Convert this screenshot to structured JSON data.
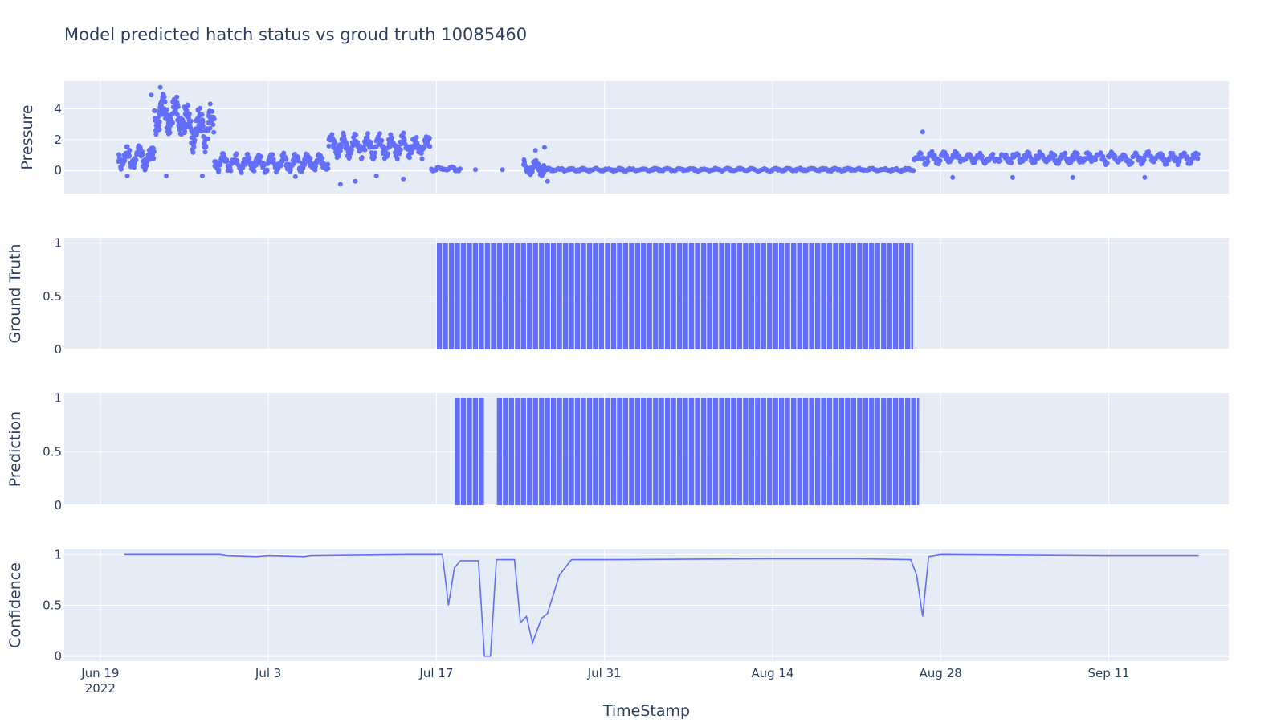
{
  "chart_data": {
    "type": "subplots",
    "title": "Model predicted hatch status vs groud truth 10085460",
    "xlabel": "TimeStamp",
    "x_axis": {
      "type": "date",
      "range": [
        "2022-06-16",
        "2022-09-21"
      ],
      "ticks": [
        {
          "date": "2022-06-19",
          "label": "Jun 19",
          "sub": "2022"
        },
        {
          "date": "2022-07-03",
          "label": "Jul 3",
          "sub": ""
        },
        {
          "date": "2022-07-17",
          "label": "Jul 17",
          "sub": ""
        },
        {
          "date": "2022-07-31",
          "label": "Jul 31",
          "sub": ""
        },
        {
          "date": "2022-08-14",
          "label": "Aug 14",
          "sub": ""
        },
        {
          "date": "2022-08-28",
          "label": "Aug 28",
          "sub": ""
        },
        {
          "date": "2022-09-11",
          "label": "Sep 11",
          "sub": ""
        }
      ]
    },
    "colors": {
      "series": "#636efa",
      "plot_bg": "#e5ecf6",
      "grid": "#ffffff",
      "text": "#2a3f5f"
    },
    "grid": true,
    "panels": [
      {
        "type": "scatter",
        "ylabel": "Pressure",
        "ylim": [
          -1.5,
          5.8
        ],
        "yticks": [
          {
            "v": 0,
            "label": "0"
          },
          {
            "v": 2,
            "label": "2"
          },
          {
            "v": 4,
            "label": "4"
          }
        ],
        "segments": [
          {
            "start": "2022-06-20T12:00",
            "end": "2022-06-23T12:00",
            "level": 0.8,
            "spread": 0.8,
            "n": 90
          },
          {
            "start": "2022-06-23T12:00",
            "end": "2022-06-26T00:00",
            "level": 3.6,
            "spread": 1.3,
            "n": 110
          },
          {
            "start": "2022-06-26T00:00",
            "end": "2022-06-28T12:00",
            "level": 2.8,
            "spread": 1.5,
            "n": 90
          },
          {
            "start": "2022-06-28T12:00",
            "end": "2022-07-08T00:00",
            "level": 0.5,
            "spread": 0.6,
            "n": 220
          },
          {
            "start": "2022-07-08T00:00",
            "end": "2022-07-16T12:00",
            "level": 1.6,
            "spread": 0.8,
            "n": 200
          },
          {
            "start": "2022-07-16T12:00",
            "end": "2022-07-19T00:00",
            "level": 0.1,
            "spread": 0.15,
            "n": 30
          },
          {
            "start": "2022-07-24T06:00",
            "end": "2022-07-26T00:00",
            "level": 0.2,
            "spread": 0.5,
            "n": 50
          },
          {
            "start": "2022-07-26T00:00",
            "end": "2022-08-25T18:00",
            "level": 0.05,
            "spread": 0.1,
            "n": 360
          },
          {
            "start": "2022-08-25T18:00",
            "end": "2022-09-18T12:00",
            "level": 0.8,
            "spread": 0.4,
            "n": 360
          }
        ],
        "outliers": [
          {
            "x": "2022-06-21T06:00",
            "y": -0.35
          },
          {
            "x": "2022-06-24T12:00",
            "y": -0.35
          },
          {
            "x": "2022-06-27T12:00",
            "y": -0.35
          },
          {
            "x": "2022-07-05T06:00",
            "y": -0.4
          },
          {
            "x": "2022-07-09T00:00",
            "y": -0.9
          },
          {
            "x": "2022-07-10T06:00",
            "y": -0.7
          },
          {
            "x": "2022-07-12T00:00",
            "y": -0.35
          },
          {
            "x": "2022-07-14T06:00",
            "y": -0.55
          },
          {
            "x": "2022-07-20T06:00",
            "y": 0.05
          },
          {
            "x": "2022-07-22T12:00",
            "y": 0.05
          },
          {
            "x": "2022-07-25T06:00",
            "y": 1.3
          },
          {
            "x": "2022-07-26T00:00",
            "y": 1.5
          },
          {
            "x": "2022-07-26T06:00",
            "y": -0.7
          },
          {
            "x": "2022-08-26T12:00",
            "y": 2.5
          },
          {
            "x": "2022-08-29T00:00",
            "y": -0.45
          },
          {
            "x": "2022-09-03T00:00",
            "y": -0.45
          },
          {
            "x": "2022-09-08T00:00",
            "y": -0.45
          },
          {
            "x": "2022-09-14T00:00",
            "y": -0.45
          },
          {
            "x": "2022-06-24T00:00",
            "y": 5.4
          },
          {
            "x": "2022-06-23T06:00",
            "y": 4.9
          }
        ]
      },
      {
        "type": "bar",
        "ylabel": "Ground Truth",
        "ylim": [
          0,
          1.05
        ],
        "yticks": [
          {
            "v": 0,
            "label": "0"
          },
          {
            "v": 0.5,
            "label": "0.5"
          },
          {
            "v": 1,
            "label": "1"
          }
        ],
        "bars": [
          {
            "start": "2022-07-17T00:00",
            "end": "2022-08-25T18:00",
            "value": 1
          }
        ]
      },
      {
        "type": "bar",
        "ylabel": "Prediction",
        "ylim": [
          0,
          1.05
        ],
        "yticks": [
          {
            "v": 0,
            "label": "0"
          },
          {
            "v": 0.5,
            "label": "0.5"
          },
          {
            "v": 1,
            "label": "1"
          }
        ],
        "bars": [
          {
            "start": "2022-07-18T12:00",
            "end": "2022-07-21T00:00",
            "value": 1
          },
          {
            "start": "2022-07-22T00:00",
            "end": "2022-08-26T06:00",
            "value": 1
          }
        ]
      },
      {
        "type": "line",
        "ylabel": "Confidence",
        "ylim": [
          -0.05,
          1.05
        ],
        "yticks": [
          {
            "v": 0,
            "label": "0"
          },
          {
            "v": 0.5,
            "label": "0.5"
          },
          {
            "v": 1,
            "label": "1"
          }
        ],
        "points": [
          {
            "x": "2022-06-21T00:00",
            "y": 1.0
          },
          {
            "x": "2022-06-29T00:00",
            "y": 1.0
          },
          {
            "x": "2022-06-29T12:00",
            "y": 0.99
          },
          {
            "x": "2022-07-02T00:00",
            "y": 0.98
          },
          {
            "x": "2022-07-03T00:00",
            "y": 0.99
          },
          {
            "x": "2022-07-06T00:00",
            "y": 0.98
          },
          {
            "x": "2022-07-06T12:00",
            "y": 0.99
          },
          {
            "x": "2022-07-15T00:00",
            "y": 1.0
          },
          {
            "x": "2022-07-17T12:00",
            "y": 1.0
          },
          {
            "x": "2022-07-18T00:00",
            "y": 0.5
          },
          {
            "x": "2022-07-18T12:00",
            "y": 0.87
          },
          {
            "x": "2022-07-19T00:00",
            "y": 0.94
          },
          {
            "x": "2022-07-20T12:00",
            "y": 0.94
          },
          {
            "x": "2022-07-21T00:00",
            "y": 0.0
          },
          {
            "x": "2022-07-21T12:00",
            "y": 0.0
          },
          {
            "x": "2022-07-22T00:00",
            "y": 0.95
          },
          {
            "x": "2022-07-23T12:00",
            "y": 0.95
          },
          {
            "x": "2022-07-24T00:00",
            "y": 0.33
          },
          {
            "x": "2022-07-24T12:00",
            "y": 0.39
          },
          {
            "x": "2022-07-25T00:00",
            "y": 0.13
          },
          {
            "x": "2022-07-25T18:00",
            "y": 0.37
          },
          {
            "x": "2022-07-26T06:00",
            "y": 0.42
          },
          {
            "x": "2022-07-27T06:00",
            "y": 0.8
          },
          {
            "x": "2022-07-28T06:00",
            "y": 0.95
          },
          {
            "x": "2022-08-01T00:00",
            "y": 0.95
          },
          {
            "x": "2022-08-14T00:00",
            "y": 0.96
          },
          {
            "x": "2022-08-21T00:00",
            "y": 0.96
          },
          {
            "x": "2022-08-25T12:00",
            "y": 0.95
          },
          {
            "x": "2022-08-26T00:00",
            "y": 0.8
          },
          {
            "x": "2022-08-26T12:00",
            "y": 0.39
          },
          {
            "x": "2022-08-27T00:00",
            "y": 0.98
          },
          {
            "x": "2022-08-28T00:00",
            "y": 1.0
          },
          {
            "x": "2022-09-11T00:00",
            "y": 0.99
          },
          {
            "x": "2022-09-18T12:00",
            "y": 0.99
          }
        ]
      }
    ]
  }
}
